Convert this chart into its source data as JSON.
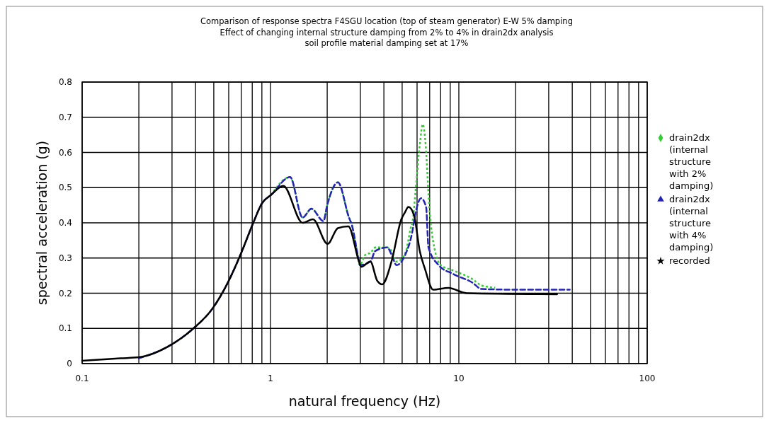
{
  "chart_data": {
    "type": "line",
    "title": "Comparison of response spectra F4SGU location (top of steam generator) E-W 5% damping",
    "subtitle": "Effect of changing internal structure damping from 2% to 4% in drain2dx analysis\nsoil profile material damping set at 17%",
    "xlabel": "natural frequency (Hz)",
    "ylabel": "spectral acceleration (g)",
    "log": "x",
    "xlim": [
      0.1,
      100
    ],
    "ylim": [
      0,
      0.8
    ],
    "xticks": [
      0.1,
      {
        "value": 0.2,
        "label": null
      },
      {
        "value": 0.3,
        "label": null
      },
      {
        "value": 0.4,
        "label": null
      },
      {
        "value": 0.5,
        "label": null
      },
      {
        "value": 0.6,
        "label": null
      },
      {
        "value": 0.7,
        "label": null
      },
      {
        "value": 0.8,
        "label": null
      },
      {
        "value": 0.9,
        "label": null
      },
      1,
      {
        "value": 2,
        "label": null
      },
      {
        "value": 3,
        "label": null
      },
      {
        "value": 4,
        "label": null
      },
      {
        "value": 5,
        "label": null
      },
      {
        "value": 6,
        "label": null
      },
      {
        "value": 7,
        "label": null
      },
      {
        "value": 8,
        "label": null
      },
      {
        "value": 9,
        "label": null
      },
      10,
      {
        "value": 20,
        "label": null
      },
      {
        "value": 30,
        "label": null
      },
      {
        "value": 40,
        "label": null
      },
      {
        "value": 50,
        "label": null
      },
      {
        "value": 60,
        "label": null
      },
      {
        "value": 70,
        "label": null
      },
      {
        "value": 80,
        "label": null
      },
      {
        "value": 90,
        "label": null
      },
      100
    ],
    "yticks": [
      0,
      0.1,
      0.2,
      0.3,
      0.4,
      0.5,
      0.6,
      0.7,
      0.8
    ],
    "grid": true,
    "legend": "right",
    "marker": "none",
    "series": [
      {
        "name": "drain2dx (internal structure with 2% damping)",
        "color": "#33cc33",
        "line_style": "dotted",
        "x": [
          1.01,
          1.27,
          1.48,
          1.65,
          1.91,
          2.0,
          2.28,
          2.61,
          2.7,
          2.95,
          2.98,
          3.2,
          3.4,
          3.6,
          4.17,
          4.39,
          4.67,
          5.2,
          5.55,
          5.7,
          5.9,
          6.2,
          6.43,
          6.7,
          6.9,
          7.1,
          8.0,
          9.3,
          11.8,
          13.2,
          15.6
        ],
        "values": [
          0.48,
          0.53,
          0.415,
          0.44,
          0.405,
          0.45,
          0.515,
          0.415,
          0.395,
          0.29,
          0.28,
          0.31,
          0.315,
          0.33,
          0.33,
          0.32,
          0.29,
          0.315,
          0.385,
          0.41,
          0.495,
          0.62,
          0.68,
          0.605,
          0.48,
          0.395,
          0.28,
          0.265,
          0.24,
          0.222,
          0.216
        ]
      },
      {
        "name": "drain2dx (internal structure with 4% damping)",
        "color": "#2323b4",
        "line_style": "dashed",
        "x": [
          0.2,
          0.3,
          0.39,
          0.49,
          0.6,
          0.7,
          0.81,
          0.9,
          1.01,
          1.27,
          1.48,
          1.65,
          1.91,
          2.0,
          2.28,
          2.61,
          2.7,
          2.95,
          2.98,
          3.39,
          3.6,
          4.17,
          4.39,
          4.67,
          5.2,
          5.64,
          5.9,
          6.3,
          6.7,
          6.9,
          7.8,
          9.3,
          11.8,
          13.2,
          20,
          38.8
        ],
        "values": [
          0.015,
          0.055,
          0.1,
          0.155,
          0.235,
          0.315,
          0.4,
          0.455,
          0.48,
          0.53,
          0.415,
          0.44,
          0.405,
          0.45,
          0.515,
          0.415,
          0.395,
          0.29,
          0.28,
          0.29,
          0.32,
          0.33,
          0.31,
          0.28,
          0.31,
          0.37,
          0.43,
          0.47,
          0.445,
          0.33,
          0.28,
          0.255,
          0.23,
          0.212,
          0.21,
          0.21
        ]
      },
      {
        "name": "recorded",
        "color": "#000000",
        "line_style": "solid",
        "x": [
          0.1,
          0.16,
          0.2,
          0.3,
          0.39,
          0.49,
          0.6,
          0.7,
          0.81,
          0.9,
          1.01,
          1.17,
          1.48,
          1.68,
          2.01,
          2.28,
          2.59,
          2.95,
          3.03,
          3.39,
          3.69,
          3.92,
          4.39,
          4.95,
          5.18,
          5.4,
          5.79,
          6.2,
          6.6,
          7.3,
          8.8,
          11.0,
          33.2
        ],
        "values": [
          0.008,
          0.015,
          0.018,
          0.055,
          0.1,
          0.155,
          0.235,
          0.315,
          0.4,
          0.455,
          0.48,
          0.505,
          0.4,
          0.41,
          0.34,
          0.385,
          0.39,
          0.29,
          0.275,
          0.29,
          0.235,
          0.225,
          0.29,
          0.41,
          0.43,
          0.445,
          0.42,
          0.32,
          0.27,
          0.21,
          0.215,
          0.2,
          0.197
        ]
      }
    ]
  }
}
